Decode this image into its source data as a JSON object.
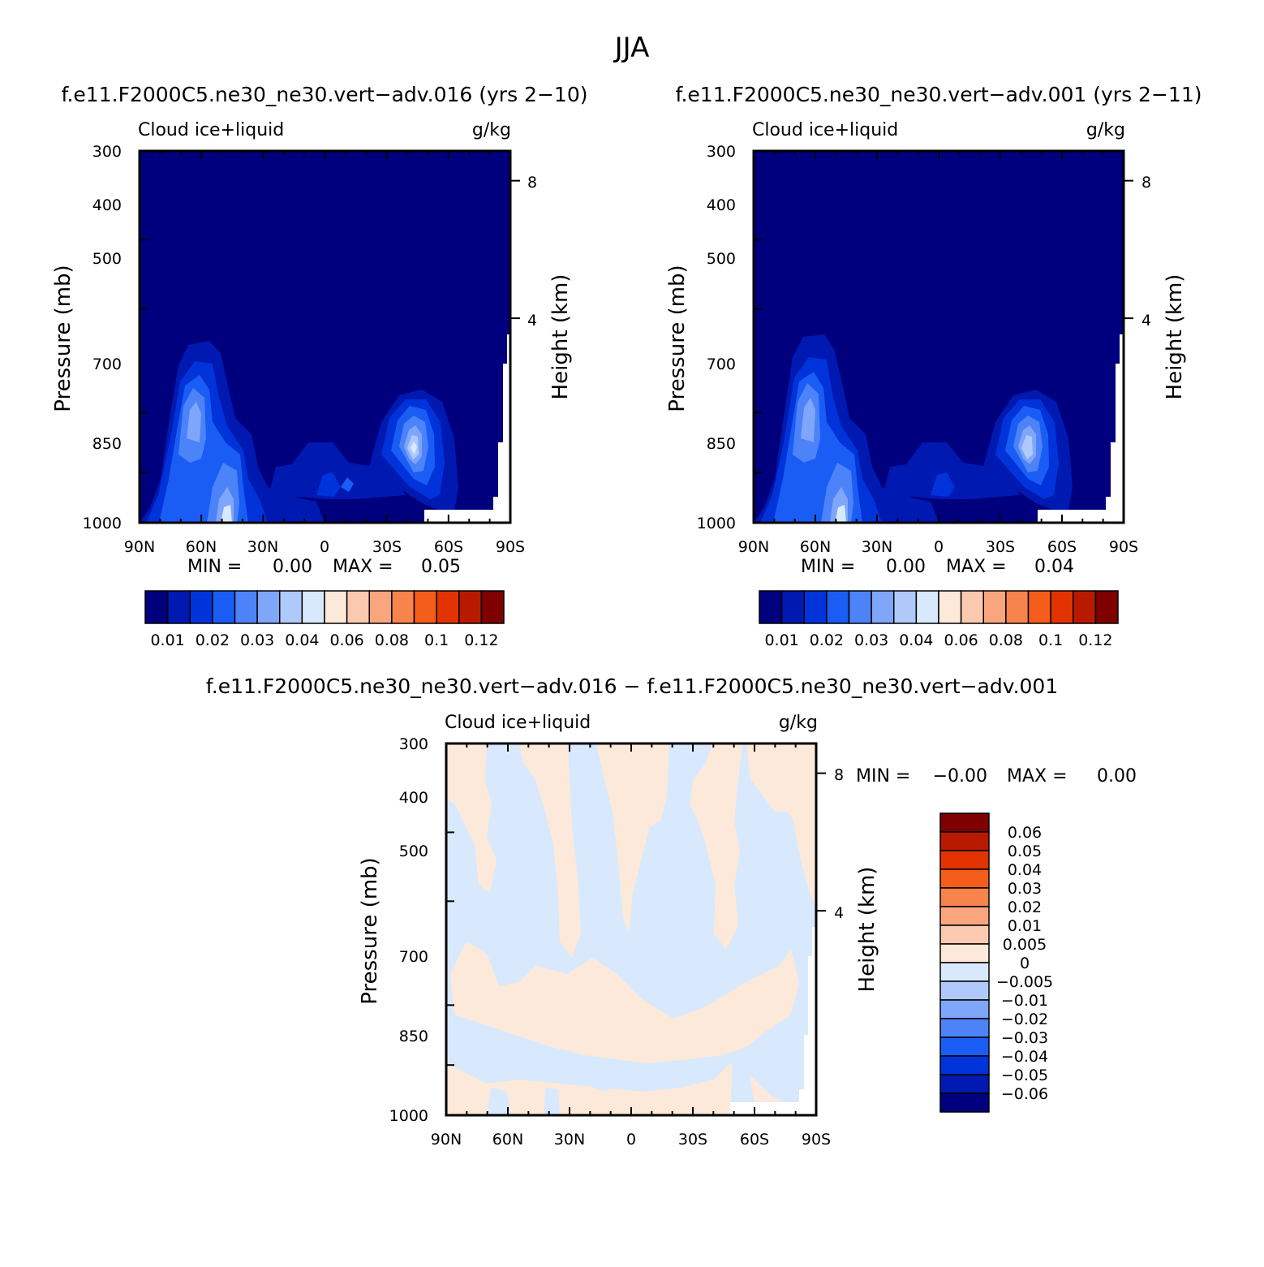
{
  "figure": {
    "title": "JJA"
  },
  "colors": {
    "abs_palette": [
      "#00007f",
      "#0019b0",
      "#0033d9",
      "#1a5df5",
      "#4d83f8",
      "#7fa6fa",
      "#b0c9fb",
      "#d9e9fd",
      "#fde9d9",
      "#fbc9b0",
      "#f9a67f",
      "#f7834d",
      "#f45d1a",
      "#e33300",
      "#b81a00",
      "#7f0000"
    ],
    "diff_palette": [
      "#00007f",
      "#0019b0",
      "#0033d9",
      "#1a5df5",
      "#4d83f8",
      "#7fa6fa",
      "#b0c9fb",
      "#d9e9fd",
      "#fde9d9",
      "#fbc9b0",
      "#f9a67f",
      "#f7834d",
      "#f45d1a",
      "#e33300",
      "#b81a00",
      "#7f0000"
    ]
  },
  "chart_data": [
    {
      "type": "heatmap",
      "case_title": "f.e11.F2000C5.ne30_ne30.vert−adv.016 (yrs 2−10)",
      "variable": "Cloud ice+liquid",
      "units": "g/kg",
      "ylabel": "Pressure (mb)",
      "ylabel_right": "Height (km)",
      "x_ticks": [
        "90N",
        "60N",
        "30N",
        "0",
        "30S",
        "60S",
        "90S"
      ],
      "y_ticks": [
        "300",
        "400",
        "500",
        "700",
        "850",
        "1000"
      ],
      "y_ticks_right": [
        "8",
        "4"
      ],
      "ylim": [
        1000,
        300
      ],
      "min_label": "MIN =",
      "min_value": "0.00",
      "max_label": "MAX =",
      "max_value": "0.05",
      "colorbar_levels": [
        "0.01",
        "0.02",
        "0.03",
        "0.04",
        "0.06",
        "0.08",
        "0.1",
        "0.12"
      ],
      "features": [
        {
          "lat": 56,
          "p": 790,
          "value": 0.03
        },
        {
          "lat": 44,
          "p": 990,
          "value": 0.045
        },
        {
          "lat": -44,
          "p": 845,
          "value": 0.05
        },
        {
          "lat": 5,
          "p": 900,
          "value": 0.015
        }
      ]
    },
    {
      "type": "heatmap",
      "case_title": "f.e11.F2000C5.ne30_ne30.vert−adv.001 (yrs 2−11)",
      "variable": "Cloud ice+liquid",
      "units": "g/kg",
      "ylabel": "Pressure (mb)",
      "ylabel_right": "Height (km)",
      "x_ticks": [
        "90N",
        "60N",
        "30N",
        "0",
        "30S",
        "60S",
        "90S"
      ],
      "y_ticks": [
        "300",
        "400",
        "500",
        "700",
        "850",
        "1000"
      ],
      "y_ticks_right": [
        "8",
        "4"
      ],
      "ylim": [
        1000,
        300
      ],
      "min_label": "MIN =",
      "min_value": "0.00",
      "max_label": "MAX =",
      "max_value": "0.04",
      "colorbar_levels": [
        "0.01",
        "0.02",
        "0.03",
        "0.04",
        "0.06",
        "0.08",
        "0.1",
        "0.12"
      ],
      "features": [
        {
          "lat": 56,
          "p": 790,
          "value": 0.03
        },
        {
          "lat": 44,
          "p": 990,
          "value": 0.04
        },
        {
          "lat": -44,
          "p": 845,
          "value": 0.04
        },
        {
          "lat": 5,
          "p": 900,
          "value": 0.015
        }
      ]
    },
    {
      "type": "heatmap",
      "case_title": "f.e11.F2000C5.ne30_ne30.vert−adv.016 − f.e11.F2000C5.ne30_ne30.vert−adv.001",
      "variable": "Cloud ice+liquid",
      "units": "g/kg",
      "ylabel": "Pressure (mb)",
      "ylabel_right": "Height (km)",
      "x_ticks": [
        "90N",
        "60N",
        "30N",
        "0",
        "30S",
        "60S",
        "90S"
      ],
      "y_ticks": [
        "300",
        "400",
        "500",
        "700",
        "850",
        "1000"
      ],
      "y_ticks_right": [
        "8",
        "4"
      ],
      "ylim": [
        1000,
        300
      ],
      "min_label": "MIN =",
      "min_value": "−0.00",
      "max_label": "MAX =",
      "max_value": "0.00",
      "colorbar_levels": [
        "0.06",
        "0.05",
        "0.04",
        "0.03",
        "0.02",
        "0.01",
        "0.005",
        "0",
        "−0.005",
        "−0.01",
        "−0.02",
        "−0.03",
        "−0.04",
        "−0.05",
        "−0.06"
      ],
      "field_description": "alternating small positive (0 to 0.005) and small negative (−0.005 to 0) differences"
    }
  ]
}
